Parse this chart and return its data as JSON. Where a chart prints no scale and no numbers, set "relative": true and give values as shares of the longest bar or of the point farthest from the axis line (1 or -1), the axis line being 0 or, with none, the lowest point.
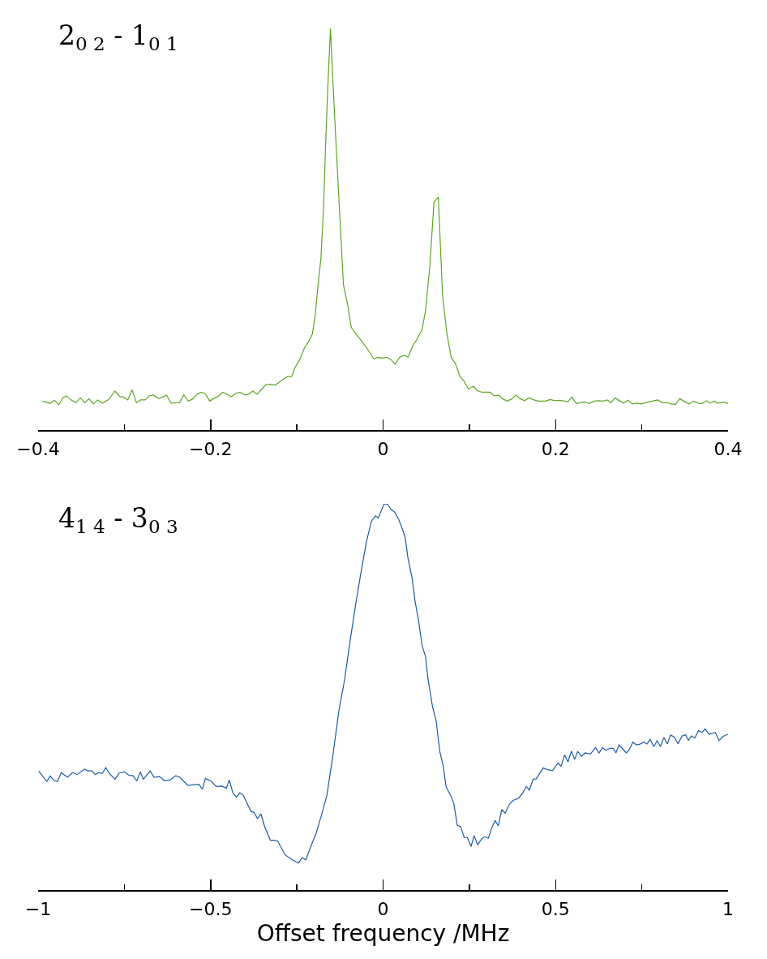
{
  "chart_data": [
    {
      "type": "line",
      "title": "2$_{0 2}$ - 1$_{0 1}$",
      "relative": true,
      "xlim": [
        -0.4,
        0.4
      ],
      "xticks": [
        -0.4,
        {
          "value": -0.3,
          "label": null
        },
        -0.2,
        {
          "value": -0.1,
          "label": null
        },
        0,
        {
          "value": 0.1,
          "label": null
        },
        0.2,
        {
          "value": 0.3,
          "label": null
        },
        0.4
      ],
      "x": [
        -0.395,
        -0.391,
        -0.386,
        -0.381,
        -0.376,
        -0.371,
        -0.367,
        -0.362,
        -0.356,
        -0.351,
        -0.346,
        -0.341,
        -0.336,
        -0.331,
        -0.325,
        -0.318,
        -0.311,
        -0.305,
        -0.301,
        -0.296,
        -0.291,
        -0.286,
        -0.281,
        -0.276,
        -0.271,
        -0.266,
        -0.26,
        -0.256,
        -0.251,
        -0.246,
        -0.241,
        -0.236,
        -0.231,
        -0.226,
        -0.221,
        -0.216,
        -0.211,
        -0.206,
        -0.201,
        -0.195,
        -0.191,
        -0.186,
        -0.181,
        -0.176,
        -0.171,
        -0.166,
        -0.16,
        -0.156,
        -0.151,
        -0.146,
        -0.141,
        -0.136,
        -0.131,
        -0.125,
        -0.121,
        -0.116,
        -0.111,
        -0.106,
        -0.102,
        -0.097,
        -0.091,
        -0.086,
        -0.082,
        -0.079,
        -0.076,
        -0.072,
        -0.069,
        -0.067,
        -0.064,
        -0.061,
        -0.058,
        -0.054,
        -0.049,
        -0.046,
        -0.041,
        -0.037,
        -0.03,
        -0.025,
        -0.017,
        -0.011,
        -0.006,
        0.0,
        0.004,
        0.009,
        0.014,
        0.019,
        0.025,
        0.029,
        0.034,
        0.039,
        0.045,
        0.049,
        0.054,
        0.059,
        0.064,
        0.069,
        0.074,
        0.079,
        0.084,
        0.089,
        0.094,
        0.099,
        0.105,
        0.109,
        0.115,
        0.124,
        0.129,
        0.134,
        0.139,
        0.144,
        0.149,
        0.154,
        0.159,
        0.164,
        0.169,
        0.175,
        0.18,
        0.188,
        0.194,
        0.199,
        0.206,
        0.214,
        0.219,
        0.224,
        0.233,
        0.239,
        0.245,
        0.25,
        0.255,
        0.26,
        0.264,
        0.269,
        0.274,
        0.279,
        0.284,
        0.289,
        0.295,
        0.299,
        0.304,
        0.312,
        0.318,
        0.324,
        0.33,
        0.334,
        0.339,
        0.344,
        0.35,
        0.355,
        0.36,
        0.365,
        0.37,
        0.375,
        0.379,
        0.384,
        0.388,
        0.395,
        0.4
      ],
      "series": [
        {
          "color": "#5da626",
          "values": [
            0.072,
            0.07,
            0.066,
            0.074,
            0.063,
            0.081,
            0.085,
            0.075,
            0.068,
            0.08,
            0.068,
            0.078,
            0.065,
            0.075,
            0.067,
            0.076,
            0.097,
            0.083,
            0.082,
            0.075,
            0.1,
            0.068,
            0.075,
            0.075,
            0.085,
            0.087,
            0.078,
            0.082,
            0.087,
            0.067,
            0.068,
            0.068,
            0.087,
            0.072,
            0.077,
            0.089,
            0.094,
            0.09,
            0.072,
            0.08,
            0.084,
            0.094,
            0.089,
            0.083,
            0.091,
            0.094,
            0.087,
            0.089,
            0.097,
            0.089,
            0.101,
            0.113,
            0.114,
            0.112,
            0.118,
            0.126,
            0.133,
            0.133,
            0.156,
            0.174,
            0.205,
            0.222,
            0.239,
            0.28,
            0.348,
            0.43,
            0.553,
            0.689,
            0.86,
            1.0,
            0.86,
            0.689,
            0.485,
            0.362,
            0.311,
            0.256,
            0.235,
            0.222,
            0.198,
            0.177,
            0.181,
            0.179,
            0.181,
            0.176,
            0.164,
            0.181,
            0.186,
            0.181,
            0.208,
            0.225,
            0.249,
            0.294,
            0.403,
            0.567,
            0.58,
            0.334,
            0.239,
            0.181,
            0.165,
            0.134,
            0.121,
            0.102,
            0.109,
            0.098,
            0.094,
            0.094,
            0.085,
            0.087,
            0.077,
            0.072,
            0.077,
            0.087,
            0.078,
            0.073,
            0.08,
            0.075,
            0.072,
            0.072,
            0.076,
            0.073,
            0.074,
            0.07,
            0.082,
            0.066,
            0.07,
            0.066,
            0.072,
            0.073,
            0.072,
            0.075,
            0.068,
            0.08,
            0.073,
            0.067,
            0.074,
            0.065,
            0.067,
            0.065,
            0.068,
            0.072,
            0.075,
            0.068,
            0.068,
            0.065,
            0.064,
            0.078,
            0.07,
            0.065,
            0.072,
            0.067,
            0.066,
            0.073,
            0.067,
            0.072,
            0.067,
            0.069,
            0.066
          ]
        }
      ]
    },
    {
      "type": "line",
      "title": "4$_{1 4}$ - 3$_{0 3}$",
      "xlabel": "Offset frequency /MHz",
      "relative": true,
      "xlim": [
        -1,
        1
      ],
      "xticks": [
        -1,
        {
          "value": -0.75,
          "label": null
        },
        -0.5,
        {
          "value": -0.25,
          "label": null
        },
        0,
        {
          "value": 0.25,
          "label": null
        },
        0.5,
        {
          "value": 0.75,
          "label": null
        },
        1
      ],
      "x": [
        -0.998,
        -0.986,
        -0.975,
        -0.965,
        -0.953,
        -0.944,
        -0.933,
        -0.915,
        -0.9,
        -0.887,
        -0.865,
        -0.855,
        -0.845,
        -0.834,
        -0.824,
        -0.814,
        -0.804,
        -0.793,
        -0.777,
        -0.765,
        -0.75,
        -0.736,
        -0.725,
        -0.714,
        -0.704,
        -0.695,
        -0.675,
        -0.664,
        -0.648,
        -0.634,
        -0.617,
        -0.601,
        -0.589,
        -0.566,
        -0.548,
        -0.534,
        -0.524,
        -0.515,
        -0.498,
        -0.484,
        -0.468,
        -0.454,
        -0.446,
        -0.435,
        -0.425,
        -0.415,
        -0.405,
        -0.383,
        -0.374,
        -0.364,
        -0.354,
        -0.344,
        -0.327,
        -0.315,
        -0.305,
        -0.284,
        -0.261,
        -0.245,
        -0.235,
        -0.224,
        -0.21,
        -0.194,
        -0.178,
        -0.163,
        -0.147,
        -0.128,
        -0.112,
        -0.096,
        -0.081,
        -0.065,
        -0.049,
        -0.034,
        -0.022,
        -0.014,
        0.0,
        0.003,
        0.013,
        0.023,
        0.034,
        0.045,
        0.055,
        0.064,
        0.072,
        0.084,
        0.092,
        0.103,
        0.113,
        0.123,
        0.131,
        0.143,
        0.154,
        0.164,
        0.174,
        0.183,
        0.196,
        0.205,
        0.215,
        0.225,
        0.235,
        0.244,
        0.255,
        0.264,
        0.274,
        0.286,
        0.295,
        0.305,
        0.315,
        0.325,
        0.334,
        0.344,
        0.354,
        0.366,
        0.377,
        0.393,
        0.405,
        0.415,
        0.424,
        0.435,
        0.444,
        0.464,
        0.479,
        0.491,
        0.507,
        0.516,
        0.526,
        0.536,
        0.546,
        0.555,
        0.564,
        0.575,
        0.585,
        0.601,
        0.616,
        0.626,
        0.636,
        0.645,
        0.658,
        0.667,
        0.675,
        0.684,
        0.695,
        0.705,
        0.714,
        0.724,
        0.734,
        0.745,
        0.755,
        0.765,
        0.774,
        0.785,
        0.794,
        0.804,
        0.814,
        0.824,
        0.833,
        0.843,
        0.855,
        0.867,
        0.877,
        0.885,
        0.894,
        0.904,
        0.914,
        0.924,
        0.933,
        0.945,
        0.963,
        0.974,
        0.984,
        1.0
      ],
      "series": [
        {
          "color": "#1c5ca6",
          "values": [
            0.308,
            0.294,
            0.281,
            0.295,
            0.283,
            0.281,
            0.304,
            0.292,
            0.304,
            0.299,
            0.313,
            0.308,
            0.309,
            0.299,
            0.304,
            0.302,
            0.317,
            0.301,
            0.287,
            0.303,
            0.306,
            0.297,
            0.296,
            0.282,
            0.306,
            0.287,
            0.308,
            0.292,
            0.294,
            0.283,
            0.285,
            0.296,
            0.292,
            0.271,
            0.273,
            0.274,
            0.261,
            0.289,
            0.282,
            0.268,
            0.269,
            0.264,
            0.285,
            0.25,
            0.241,
            0.252,
            0.245,
            0.204,
            0.201,
            0.185,
            0.197,
            0.166,
            0.129,
            0.129,
            0.126,
            0.091,
            0.077,
            0.07,
            0.084,
            0.078,
            0.112,
            0.147,
            0.196,
            0.245,
            0.339,
            0.465,
            0.542,
            0.643,
            0.731,
            0.818,
            0.899,
            0.955,
            0.969,
            0.963,
            0.993,
            1.0,
            0.999,
            0.986,
            0.978,
            0.96,
            0.937,
            0.913,
            0.86,
            0.808,
            0.752,
            0.696,
            0.633,
            0.605,
            0.542,
            0.476,
            0.437,
            0.36,
            0.322,
            0.266,
            0.245,
            0.224,
            0.168,
            0.164,
            0.136,
            0.136,
            0.113,
            0.141,
            0.117,
            0.133,
            0.138,
            0.134,
            0.161,
            0.18,
            0.166,
            0.208,
            0.199,
            0.222,
            0.232,
            0.238,
            0.252,
            0.268,
            0.259,
            0.287,
            0.288,
            0.316,
            0.311,
            0.309,
            0.329,
            0.32,
            0.35,
            0.332,
            0.36,
            0.338,
            0.359,
            0.346,
            0.355,
            0.352,
            0.369,
            0.355,
            0.369,
            0.362,
            0.367,
            0.367,
            0.355,
            0.376,
            0.365,
            0.355,
            0.364,
            0.383,
            0.376,
            0.378,
            0.383,
            0.378,
            0.39,
            0.372,
            0.386,
            0.372,
            0.395,
            0.378,
            0.401,
            0.397,
            0.379,
            0.399,
            0.402,
            0.387,
            0.399,
            0.394,
            0.413,
            0.408,
            0.417,
            0.403,
            0.408,
            0.387,
            0.397,
            0.404
          ]
        }
      ]
    }
  ]
}
